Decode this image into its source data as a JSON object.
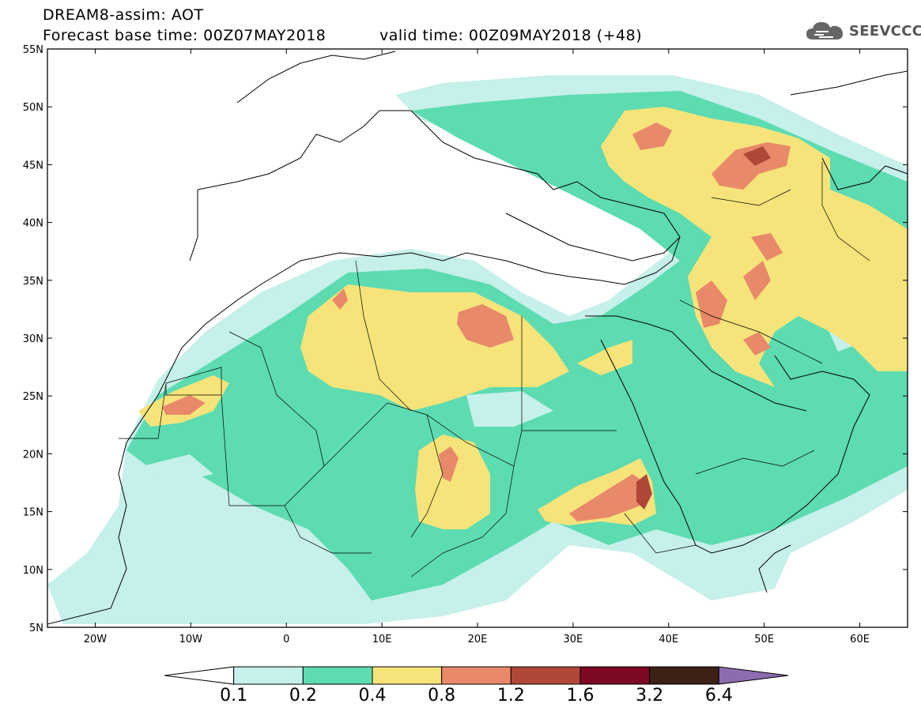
{
  "header": {
    "title": "DREAM8-assim: AOT",
    "base_time": "Forecast base time: 00Z07MAY2018",
    "valid_time": "valid time: 00Z09MAY2018 (+48)",
    "logo_text": "SEEVCCC"
  },
  "map": {
    "lat_labels": [
      "55N",
      "50N",
      "45N",
      "40N",
      "35N",
      "30N",
      "25N",
      "20N",
      "15N",
      "10N",
      "5N"
    ],
    "lon_labels": [
      "20W",
      "10W",
      "0",
      "10E",
      "20E",
      "30E",
      "40E",
      "50E",
      "60E"
    ],
    "extent": {
      "lon": [
        -25,
        65
      ],
      "lat": [
        5,
        55
      ]
    }
  },
  "colorbar": {
    "labels": [
      "0.1",
      "0.2",
      "0.4",
      "0.8",
      "1.2",
      "1.6",
      "3.2",
      "6.4"
    ],
    "colors": [
      "#ffffff",
      "#c6f0ea",
      "#5ddbb1",
      "#f6e47a",
      "#e8896a",
      "#b0483a",
      "#7d0a22",
      "#3b2214",
      "#8c6cae"
    ]
  }
}
